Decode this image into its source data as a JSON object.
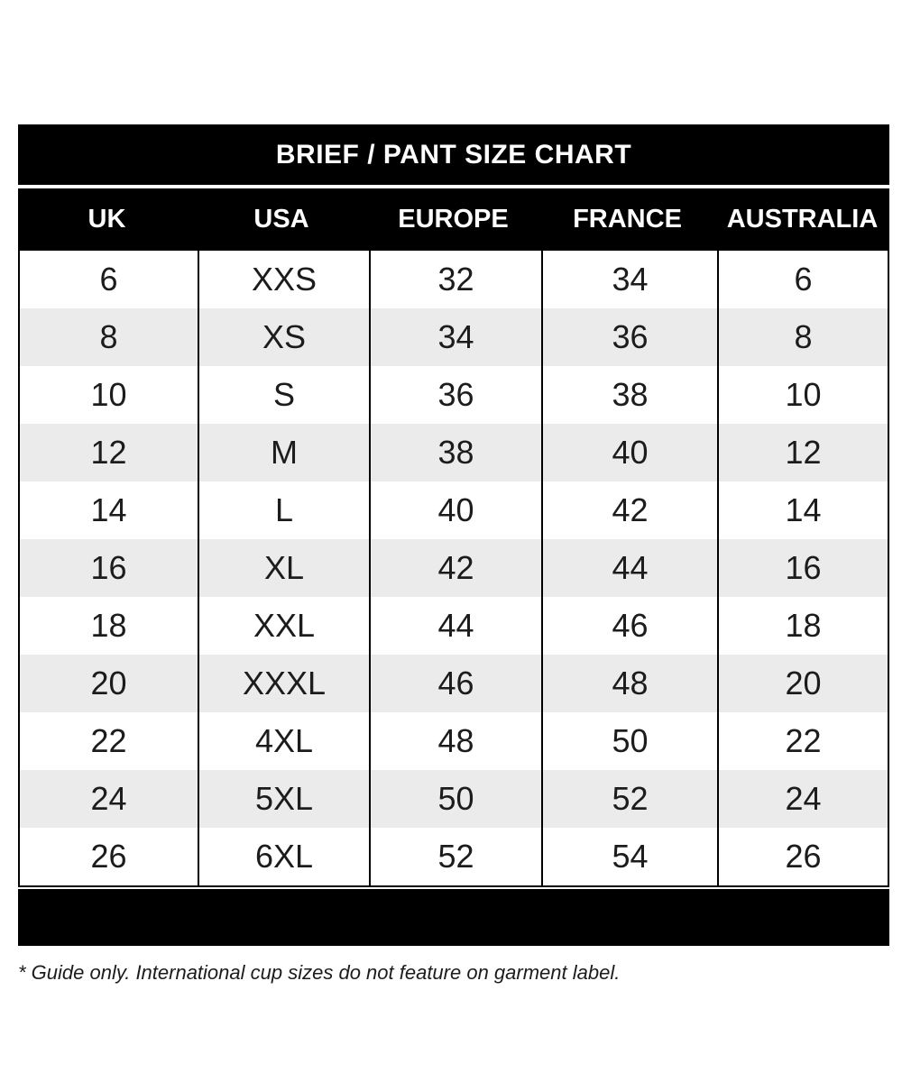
{
  "chart_data": {
    "type": "table",
    "title": "BRIEF / PANT SIZE CHART",
    "columns": [
      "UK",
      "USA",
      "EUROPE",
      "FRANCE",
      "AUSTRALIA"
    ],
    "rows": [
      [
        "6",
        "XXS",
        "32",
        "34",
        "6"
      ],
      [
        "8",
        "XS",
        "34",
        "36",
        "8"
      ],
      [
        "10",
        "S",
        "36",
        "38",
        "10"
      ],
      [
        "12",
        "M",
        "38",
        "40",
        "12"
      ],
      [
        "14",
        "L",
        "40",
        "42",
        "14"
      ],
      [
        "16",
        "XL",
        "42",
        "44",
        "16"
      ],
      [
        "18",
        "XXL",
        "44",
        "46",
        "18"
      ],
      [
        "20",
        "XXXL",
        "46",
        "48",
        "20"
      ],
      [
        "22",
        "4XL",
        "48",
        "50",
        "22"
      ],
      [
        "24",
        "5XL",
        "50",
        "52",
        "24"
      ],
      [
        "26",
        "6XL",
        "52",
        "54",
        "26"
      ]
    ],
    "layout": {
      "alternating_rows": true,
      "header_position": "top"
    },
    "colors": {
      "bar_background": "#000000",
      "bar_text": "#ffffff",
      "row_background": "#ffffff",
      "row_alt_background": "#ebebeb",
      "cell_text": "#1c1c1c",
      "divider": "#000000"
    }
  },
  "footnote": "* Guide only. International cup sizes do not feature on garment label."
}
